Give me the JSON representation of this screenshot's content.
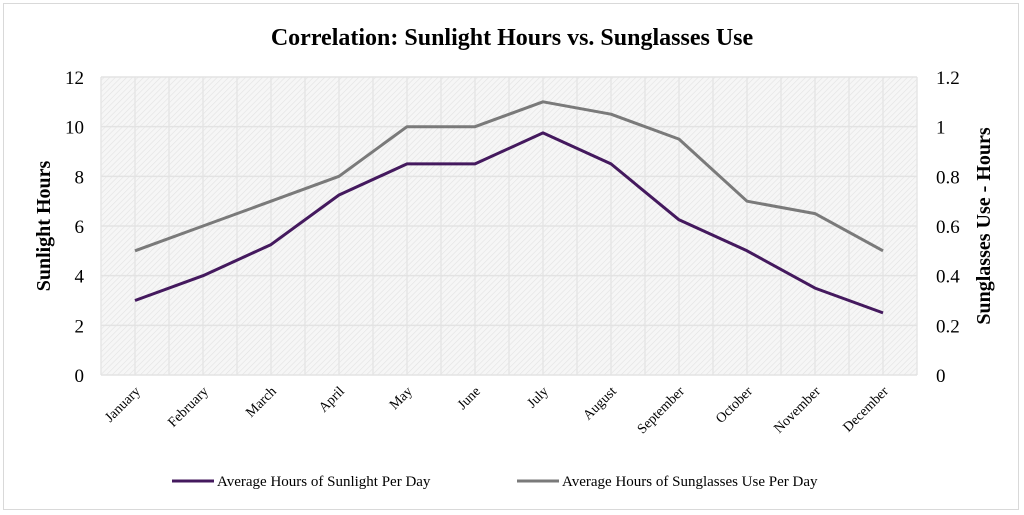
{
  "chart_data": {
    "type": "line",
    "title": "Correlation: Sunlight Hours vs. Sunglasses Use",
    "xlabel": "",
    "ylabel": "Sunlight Hours",
    "y2label": "Sunglasses Use - Hours",
    "categories": [
      "January",
      "February",
      "March",
      "April",
      "May",
      "June",
      "July",
      "August",
      "September",
      "October",
      "November",
      "December"
    ],
    "ylim": [
      0,
      12
    ],
    "y2lim": [
      0,
      1.2
    ],
    "yticks": [
      "0",
      "2",
      "4",
      "6",
      "8",
      "10",
      "12"
    ],
    "y2ticks": [
      "0",
      "0.2",
      "0.4",
      "0.6",
      "0.8",
      "1",
      "1.2"
    ],
    "grid": true,
    "legend_position": "bottom",
    "series": [
      {
        "name": "Average Hours of Sunlight Per Day",
        "axis": "left",
        "color": "#44195e",
        "values": [
          3,
          4,
          5.25,
          7.25,
          8.5,
          8.5,
          9.75,
          8.5,
          6.25,
          5,
          3.5,
          2.5
        ]
      },
      {
        "name": "Average Hours of Sunglasses Use Per Day",
        "axis": "right",
        "color": "#7a7a7a",
        "values": [
          0.5,
          0.6,
          0.7,
          0.8,
          1.0,
          1.0,
          1.1,
          1.05,
          0.95,
          0.7,
          0.65,
          0.5
        ]
      }
    ]
  }
}
